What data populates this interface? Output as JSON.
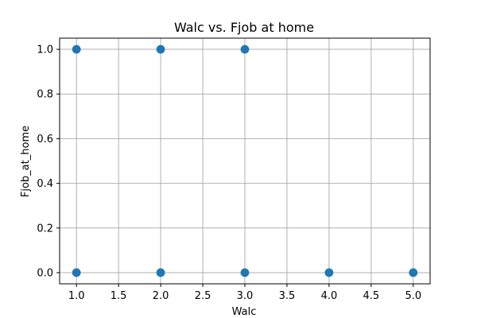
{
  "chart_data": {
    "type": "scatter",
    "title": "Walc vs. Fjob at home",
    "xlabel": "Walc",
    "ylabel": "Fjob_at_home",
    "xlim": [
      0.8,
      5.2
    ],
    "ylim": [
      -0.05,
      1.05
    ],
    "xticks": [
      1.0,
      1.5,
      2.0,
      2.5,
      3.0,
      3.5,
      4.0,
      4.5,
      5.0
    ],
    "xtick_labels": [
      "1.0",
      "1.5",
      "2.0",
      "2.5",
      "3.0",
      "3.5",
      "4.0",
      "4.5",
      "5.0"
    ],
    "yticks": [
      0.0,
      0.2,
      0.4,
      0.6,
      0.8,
      1.0
    ],
    "ytick_labels": [
      "0.0",
      "0.2",
      "0.4",
      "0.6",
      "0.8",
      "1.0"
    ],
    "grid": true,
    "marker_color": "#1f77b4",
    "points": [
      {
        "x": 1,
        "y": 1
      },
      {
        "x": 2,
        "y": 1
      },
      {
        "x": 3,
        "y": 1
      },
      {
        "x": 1,
        "y": 0
      },
      {
        "x": 2,
        "y": 0
      },
      {
        "x": 3,
        "y": 0
      },
      {
        "x": 4,
        "y": 0
      },
      {
        "x": 5,
        "y": 0
      }
    ]
  }
}
